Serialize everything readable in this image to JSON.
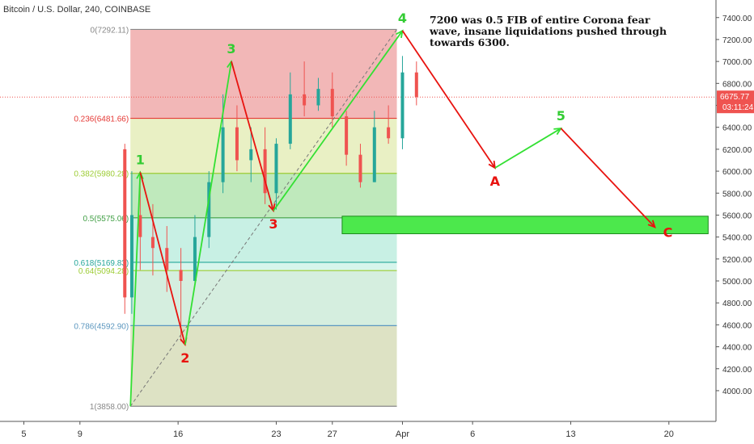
{
  "header": {
    "symbol_title": "Bitcoin / U.S. Dollar, 240, COINBASE"
  },
  "annotation": {
    "text": "7200 was 0.5 FIB of entire Corona fear wave, insane liquidations pushed through towards 6300."
  },
  "price_scale": {
    "current_price": "6675.77",
    "countdown": "03:11:24",
    "badge_color": "#ef5350"
  },
  "colors": {
    "impulse_up": "#33e033",
    "impulse_down": "#e8130f",
    "fib_line": "#f23645",
    "candle_up": "#26a69a",
    "candle_down": "#ef5350",
    "target_zone": "#4ce84c"
  },
  "chart_data": {
    "type": "candlestick",
    "title": "Bitcoin / U.S. Dollar, 240, COINBASE",
    "y_ticks": [
      4000,
      4200,
      4400,
      4600,
      4800,
      5000,
      5200,
      5400,
      5600,
      5800,
      6000,
      6200,
      6400,
      6600,
      6800,
      7000,
      7200,
      7400
    ],
    "y_tick_labels": [
      "4000.00",
      "4200.00",
      "4400.00",
      "4600.00",
      "4800.00",
      "5000.00",
      "5200.00",
      "5400.00",
      "5600.00",
      "5800.00",
      "6000.00",
      "6200.00",
      "6400.00",
      "6600.00",
      "6800.00",
      "7000.00",
      "7200.00",
      "7400.00"
    ],
    "x_ticks": [
      {
        "day": 5,
        "label": "5"
      },
      {
        "day": 9,
        "label": "9"
      },
      {
        "day": 16,
        "label": "16"
      },
      {
        "day": 23,
        "label": "23"
      },
      {
        "day": 27,
        "label": "27"
      },
      {
        "day": 32,
        "label": "Apr"
      },
      {
        "day": 37,
        "label": "6"
      },
      {
        "day": 44,
        "label": "13"
      },
      {
        "day": 51,
        "label": "20"
      }
    ],
    "x_unit_note": "days counted from 1 March 2020",
    "ylim": [
      3720,
      7560
    ],
    "xlim": [
      3.3,
      54.3
    ],
    "fib_retracement": {
      "start_day": 12.6,
      "end_day": 31.6,
      "levels": [
        {
          "ratio": "0",
          "price": 7292.11,
          "label": "0(7292.11)",
          "color": "#888888",
          "fill": "#f2b7b7"
        },
        {
          "ratio": "0.236",
          "price": 6481.66,
          "label": "0.236(6481.66)",
          "color": "#e53935",
          "fill": "#e9f0c4"
        },
        {
          "ratio": "0.382",
          "price": 5980.28,
          "label": "0.382(5980.28)",
          "color": "#9ccc33",
          "fill": "#bfe9bc"
        },
        {
          "ratio": "0.5",
          "price": 5575.06,
          "label": "0.5(5575.06)",
          "color": "#43a047",
          "fill": "#c8f0e4"
        },
        {
          "ratio": "0.618",
          "price": 5169.83,
          "label": "0.618(5169.83)",
          "color": "#26a69a",
          "fill": "#d7f5ec"
        },
        {
          "ratio": "0.64",
          "price": 5094.28,
          "label": "0.64(5094.28)",
          "color": "#9ccc33",
          "fill": "#d5eedf"
        },
        {
          "ratio": "0.786",
          "price": 4592.9,
          "label": "0.786(4592.90)",
          "color": "#5c97bf",
          "fill": "#dde2c4"
        },
        {
          "ratio": "1",
          "price": 3858.0,
          "label": "1(3858.00)",
          "color": "#888888",
          "fill": null
        }
      ]
    },
    "wave_count": [
      {
        "label": "1",
        "day": 13.3,
        "price": 5990,
        "color": "#33cc33"
      },
      {
        "label": "2",
        "day": 16.5,
        "price": 4420,
        "color": "#e8130f"
      },
      {
        "label": "3",
        "day": 19.8,
        "price": 7000,
        "color": "#33cc33"
      },
      {
        "label": "3",
        "day": 22.8,
        "price": 5640,
        "color": "#e8130f"
      },
      {
        "label": "4",
        "day": 32.0,
        "price": 7280,
        "color": "#33cc33"
      },
      {
        "label": "A",
        "day": 38.6,
        "price": 6030,
        "color": "#e8130f"
      },
      {
        "label": "5",
        "day": 43.3,
        "price": 6390,
        "color": "#33cc33"
      },
      {
        "label": "C",
        "day": 50.0,
        "price": 5490,
        "color": "#e8130f"
      }
    ],
    "target_zone": {
      "start_day": 27.7,
      "end_day": 53.8,
      "low": 5430,
      "high": 5590
    },
    "candles_ohlc_summary": [
      {
        "day": 12.2,
        "open": 6200,
        "high": 6250,
        "low": 4700,
        "close": 4850
      },
      {
        "day": 12.7,
        "open": 4850,
        "high": 6000,
        "low": 4700,
        "close": 5600
      },
      {
        "day": 13.3,
        "open": 5600,
        "high": 6000,
        "low": 5100,
        "close": 5400
      },
      {
        "day": 14.2,
        "open": 5400,
        "high": 5700,
        "low": 5050,
        "close": 5300
      },
      {
        "day": 15.2,
        "open": 5300,
        "high": 5500,
        "low": 4900,
        "close": 5100
      },
      {
        "day": 16.2,
        "open": 5100,
        "high": 5300,
        "low": 4450,
        "close": 5000
      },
      {
        "day": 17.2,
        "open": 5000,
        "high": 5600,
        "low": 4950,
        "close": 5400
      },
      {
        "day": 18.2,
        "open": 5400,
        "high": 6000,
        "low": 5300,
        "close": 5900
      },
      {
        "day": 19.2,
        "open": 5900,
        "high": 6700,
        "low": 5800,
        "close": 6400
      },
      {
        "day": 20.2,
        "open": 6400,
        "high": 6600,
        "low": 6000,
        "close": 6100
      },
      {
        "day": 21.2,
        "open": 6100,
        "high": 6400,
        "low": 5900,
        "close": 6200
      },
      {
        "day": 22.2,
        "open": 6200,
        "high": 6400,
        "low": 5700,
        "close": 5800
      },
      {
        "day": 23.0,
        "open": 5800,
        "high": 6300,
        "low": 5650,
        "close": 6250
      },
      {
        "day": 24.0,
        "open": 6250,
        "high": 6900,
        "low": 6200,
        "close": 6700
      },
      {
        "day": 25.0,
        "open": 6700,
        "high": 7000,
        "low": 6500,
        "close": 6600
      },
      {
        "day": 26.0,
        "open": 6600,
        "high": 6850,
        "low": 6550,
        "close": 6750
      },
      {
        "day": 27.0,
        "open": 6750,
        "high": 6900,
        "low": 6400,
        "close": 6500
      },
      {
        "day": 28.0,
        "open": 6500,
        "high": 6550,
        "low": 6050,
        "close": 6150
      },
      {
        "day": 29.0,
        "open": 6150,
        "high": 6250,
        "low": 5850,
        "close": 5900
      },
      {
        "day": 30.0,
        "open": 5900,
        "high": 6550,
        "low": 5900,
        "close": 6400
      },
      {
        "day": 31.0,
        "open": 6400,
        "high": 6600,
        "low": 6250,
        "close": 6300
      },
      {
        "day": 32.0,
        "open": 6300,
        "high": 7050,
        "low": 6200,
        "close": 6900
      },
      {
        "day": 33.0,
        "open": 6900,
        "high": 7000,
        "low": 6600,
        "close": 6676
      }
    ]
  }
}
